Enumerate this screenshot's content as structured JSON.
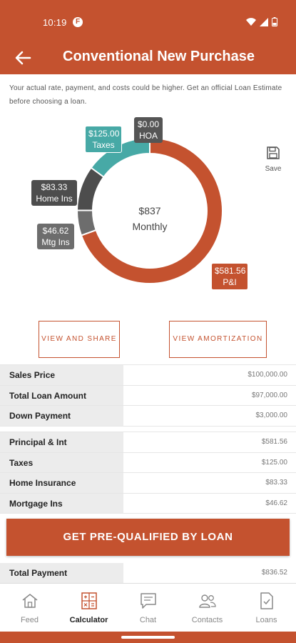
{
  "status_bar": {
    "time": "10:19",
    "app_badge": "F"
  },
  "app_bar": {
    "title": "Conventional New Purchase"
  },
  "disclaimer": "Your actual rate, payment, and costs could be higher. Get an official Loan Estimate before choosing a loan.",
  "chart_data": {
    "type": "pie",
    "style": "donut",
    "center_value": "$837",
    "center_label": "Monthly",
    "slices": [
      {
        "label": "P&I",
        "value": 581.56,
        "display": "$581.56",
        "color": "#c4522f"
      },
      {
        "label": "Mtg Ins",
        "value": 46.62,
        "display": "$46.62",
        "color": "#6d6d6d"
      },
      {
        "label": "Home Ins",
        "value": 83.33,
        "display": "$83.33",
        "color": "#4d4d4d"
      },
      {
        "label": "Taxes",
        "value": 125.0,
        "display": "$125.00",
        "color": "#47a9a6"
      },
      {
        "label": "HOA",
        "value": 0.0,
        "display": "$0.00",
        "color": "#555555"
      }
    ]
  },
  "save": {
    "label": "Save"
  },
  "buttons": {
    "share": "VIEW AND SHARE",
    "amortization": "VIEW AMORTIZATION"
  },
  "loan_table": [
    {
      "label": "Sales Price",
      "value": "$100,000.00"
    },
    {
      "label": "Total Loan Amount",
      "value": "$97,000.00"
    },
    {
      "label": "Down Payment",
      "value": "$3,000.00"
    }
  ],
  "payment_table": [
    {
      "label": "Principal & Int",
      "value": "$581.56"
    },
    {
      "label": "Taxes",
      "value": "$125.00"
    },
    {
      "label": "Home Insurance",
      "value": "$83.33"
    },
    {
      "label": "Mortgage Ins",
      "value": "$46.62"
    }
  ],
  "cta": {
    "label": "GET PRE-QUALIFIED BY LOAN"
  },
  "total": {
    "label": "Total Payment",
    "value": "$836.52"
  },
  "nav": [
    {
      "label": "Feed",
      "icon": "house-icon"
    },
    {
      "label": "Calculator",
      "icon": "calculator-icon"
    },
    {
      "label": "Chat",
      "icon": "chat-icon"
    },
    {
      "label": "Contacts",
      "icon": "contacts-icon"
    },
    {
      "label": "Loans",
      "icon": "document-check-icon"
    }
  ],
  "colors": {
    "brand": "#c4522f",
    "teal": "#47a9a6"
  }
}
